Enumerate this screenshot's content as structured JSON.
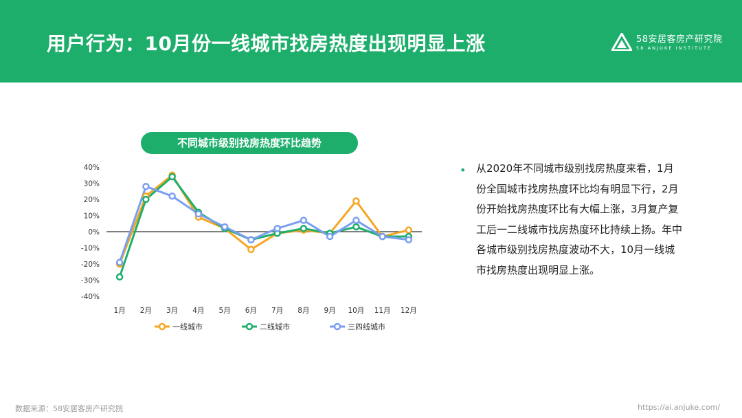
{
  "header": {
    "title": "用户行为：10月份一线城市找房热度出现明显上涨",
    "logo_cn": "58安居客房产研究院",
    "logo_en": "58 ANJUKE INSTITUTE"
  },
  "chart_title_pill": "不同城市级别找房热度环比趋势",
  "chart_data": {
    "type": "line",
    "title": "不同城市级别找房热度环比趋势",
    "categories": [
      "1月",
      "2月",
      "3月",
      "4月",
      "5月",
      "6月",
      "7月",
      "8月",
      "9月",
      "10月",
      "11月",
      "12月"
    ],
    "yticks": [
      "40%",
      "30%",
      "20%",
      "10%",
      "0%",
      "-10%",
      "-20%",
      "-30%",
      "-40%"
    ],
    "ylim": [
      -40,
      40
    ],
    "ylabel": "",
    "xlabel": "",
    "grid": false,
    "legend_position": "bottom",
    "series": [
      {
        "name": "一线城市",
        "color": "#f5a623",
        "values": [
          -20,
          22,
          35,
          9,
          2,
          -11,
          -1,
          1,
          -1,
          19,
          -3,
          1
        ]
      },
      {
        "name": "二线城市",
        "color": "#1dae6c",
        "values": [
          -28,
          20,
          34,
          12,
          2,
          -5,
          -1,
          2,
          -1,
          3,
          -3,
          -3
        ]
      },
      {
        "name": "三四线城市",
        "color": "#7b9ef0",
        "values": [
          -19,
          28,
          22,
          11,
          3,
          -5,
          2,
          7,
          -3,
          7,
          -3,
          -5
        ]
      }
    ]
  },
  "bullet": {
    "text": "从2020年不同城市级别找房热度来看，1月份全国城市找房热度环比均有明显下行，2月份开始找房热度环比有大幅上涨，3月复产复工后一二线城市找房热度环比持续上扬。年中各城市级别找房热度波动不大，10月一线城市找房热度出现明显上涨。"
  },
  "footer": {
    "source": "数据来源：58安居客房产研究院",
    "url": "https://ai.anjuke.com/"
  }
}
